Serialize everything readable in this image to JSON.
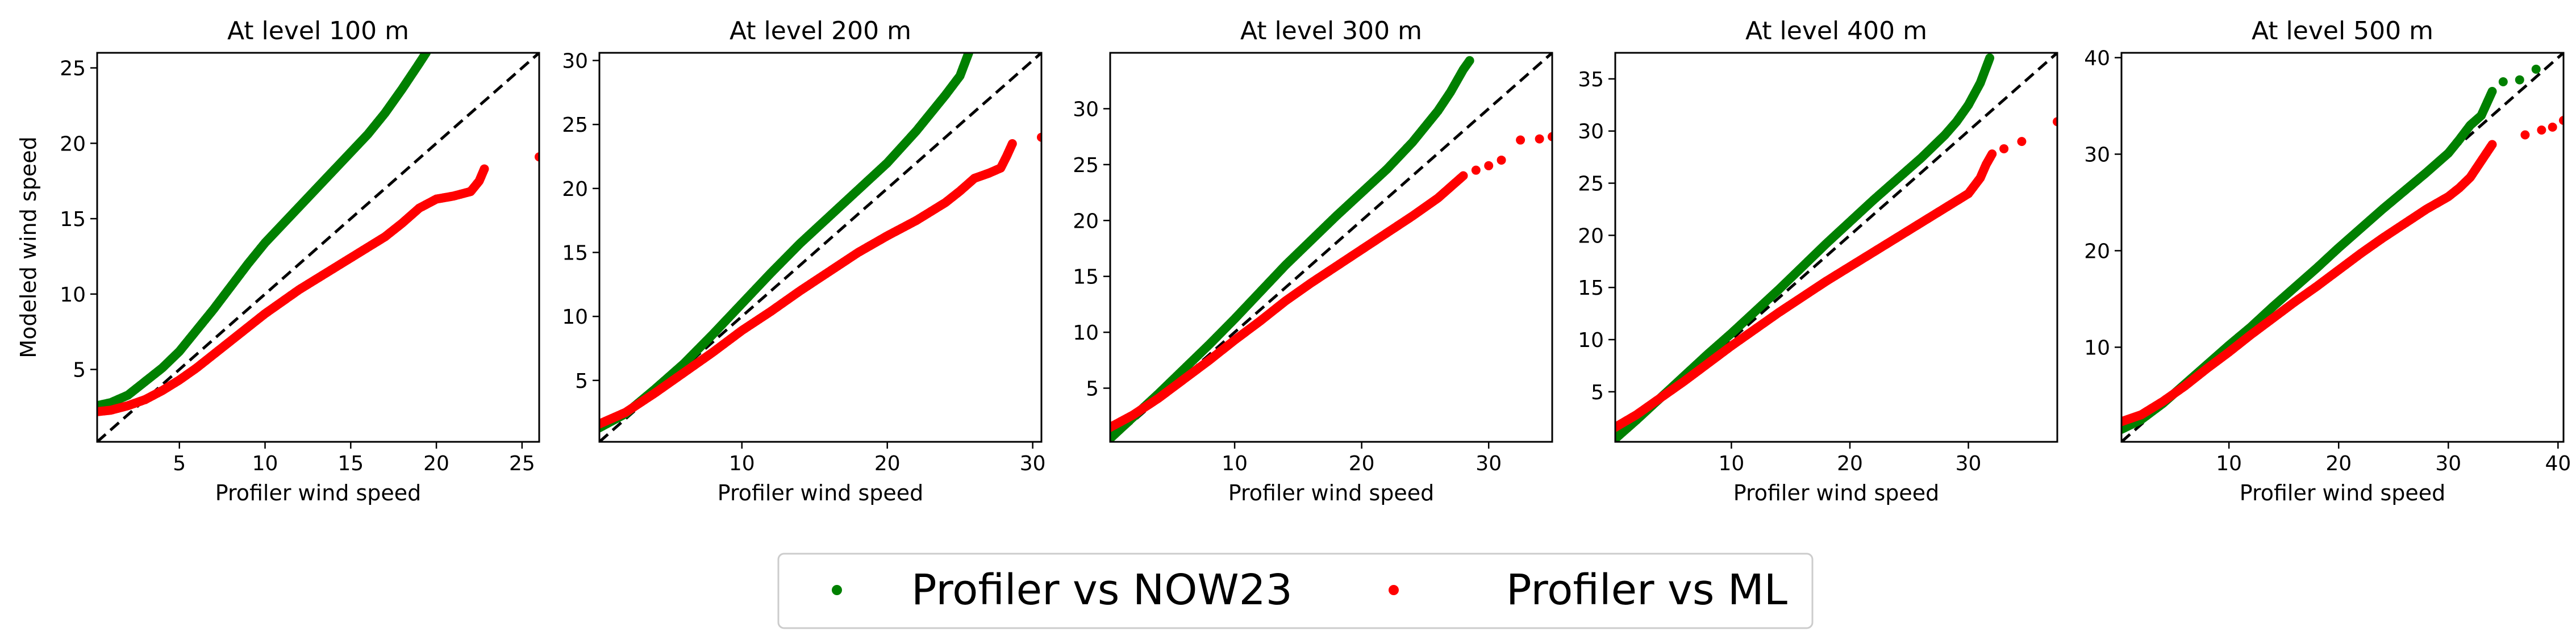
{
  "colors": {
    "now23": "#008000",
    "ml": "#ff0000",
    "identity": "#000000"
  },
  "legend": {
    "placement": "bottom-center",
    "entries": [
      {
        "label": "Profiler vs NOW23",
        "color": "#008000"
      },
      {
        "label": "Profiler vs ML",
        "color": "#ff0000"
      }
    ]
  },
  "chart_data": [
    {
      "type": "scatter",
      "title": "At level 100 m",
      "xlabel": "Profiler wind speed",
      "ylabel": "Modeled wind speed",
      "xlim": [
        0.2,
        26.0
      ],
      "ylim": [
        0.2,
        26.0
      ],
      "xticks": [
        5,
        10,
        15,
        20,
        25
      ],
      "yticks": [
        5,
        10,
        15,
        20,
        25
      ],
      "identity_line": true,
      "series": [
        {
          "name": "Profiler vs NOW23",
          "color": "#008000",
          "x": [
            0.2,
            1.0,
            2.0,
            3.0,
            4.0,
            5.0,
            6.0,
            7.0,
            8.0,
            9.0,
            10.0,
            11.0,
            12.0,
            13.0,
            14.0,
            15.0,
            16.0,
            17.0,
            18.0,
            19.0,
            19.4
          ],
          "y": [
            2.6,
            2.8,
            3.3,
            4.2,
            5.1,
            6.2,
            7.6,
            9.0,
            10.5,
            12.0,
            13.4,
            14.6,
            15.8,
            17.0,
            18.2,
            19.4,
            20.6,
            22.0,
            23.6,
            25.3,
            26.0
          ]
        },
        {
          "name": "Profiler vs ML",
          "color": "#ff0000",
          "x": [
            0.2,
            1.0,
            2.0,
            3.0,
            4.0,
            5.0,
            6.0,
            7.0,
            8.0,
            9.0,
            10.0,
            11.0,
            12.0,
            13.0,
            14.0,
            15.0,
            16.0,
            17.0,
            18.0,
            19.0,
            20.0,
            21.0,
            22.0,
            22.5,
            22.8
          ],
          "y": [
            2.2,
            2.3,
            2.6,
            3.0,
            3.6,
            4.3,
            5.1,
            6.0,
            6.9,
            7.8,
            8.7,
            9.5,
            10.3,
            11.0,
            11.7,
            12.4,
            13.1,
            13.8,
            14.7,
            15.7,
            16.3,
            16.5,
            16.8,
            17.5,
            18.3
          ]
        },
        {
          "name": "Profiler vs ML",
          "color": "#ff0000",
          "x": [
            26.0
          ],
          "y": [
            19.1
          ]
        }
      ]
    },
    {
      "type": "scatter",
      "title": "At level 200 m",
      "xlabel": "Profiler wind speed",
      "ylabel": "",
      "xlim": [
        0.2,
        30.6
      ],
      "ylim": [
        0.2,
        30.6
      ],
      "xticks": [
        10,
        20,
        30
      ],
      "yticks": [
        5,
        10,
        15,
        20,
        25,
        30
      ],
      "identity_line": true,
      "series": [
        {
          "name": "Profiler vs NOW23",
          "color": "#008000",
          "x": [
            0.2,
            2.0,
            4.0,
            6.0,
            8.0,
            10.0,
            12.0,
            14.0,
            16.0,
            18.0,
            20.0,
            22.0,
            24.0,
            25.0,
            25.6
          ],
          "y": [
            1.3,
            2.4,
            4.3,
            6.3,
            8.6,
            11.0,
            13.4,
            15.7,
            17.8,
            19.9,
            22.0,
            24.5,
            27.3,
            28.8,
            30.6
          ]
        },
        {
          "name": "Profiler vs ML",
          "color": "#ff0000",
          "x": [
            0.2,
            2.0,
            4.0,
            6.0,
            8.0,
            10.0,
            12.0,
            14.0,
            16.0,
            18.0,
            20.0,
            22.0,
            24.0,
            25.0,
            26.0,
            27.0,
            27.8,
            28.2,
            28.6
          ],
          "y": [
            1.6,
            2.5,
            4.0,
            5.6,
            7.2,
            8.9,
            10.4,
            12.0,
            13.5,
            15.0,
            16.3,
            17.5,
            18.9,
            19.8,
            20.8,
            21.2,
            21.6,
            22.5,
            23.5
          ]
        },
        {
          "name": "Profiler vs ML",
          "color": "#ff0000",
          "x": [
            30.6
          ],
          "y": [
            24.0
          ]
        }
      ]
    },
    {
      "type": "scatter",
      "title": "At level 300 m",
      "xlabel": "Profiler wind speed",
      "ylabel": "",
      "xlim": [
        0.2,
        35.0
      ],
      "ylim": [
        0.2,
        35.0
      ],
      "xticks": [
        10,
        20,
        30
      ],
      "yticks": [
        5,
        10,
        15,
        20,
        25,
        30
      ],
      "identity_line": true,
      "series": [
        {
          "name": "Profiler vs NOW23",
          "color": "#008000",
          "x": [
            0.2,
            2.0,
            4.0,
            6.0,
            8.0,
            10.0,
            12.0,
            14.0,
            16.0,
            18.0,
            20.0,
            22.0,
            24.0,
            26.0,
            27.0,
            28.0,
            28.5
          ],
          "y": [
            0.5,
            2.4,
            4.5,
            6.7,
            8.9,
            11.2,
            13.6,
            16.0,
            18.2,
            20.4,
            22.5,
            24.6,
            27.0,
            29.8,
            31.5,
            33.5,
            34.3
          ]
        },
        {
          "name": "Profiler vs ML",
          "color": "#ff0000",
          "x": [
            0.2,
            2.0,
            4.0,
            6.0,
            8.0,
            10.0,
            12.0,
            14.0,
            16.0,
            18.0,
            20.0,
            22.0,
            24.0,
            26.0,
            27.0,
            28.0
          ],
          "y": [
            1.5,
            2.6,
            4.1,
            5.8,
            7.5,
            9.3,
            11.0,
            12.8,
            14.4,
            15.9,
            17.4,
            18.9,
            20.4,
            22.0,
            23.0,
            24.0
          ]
        },
        {
          "name": "Profiler vs ML",
          "color": "#ff0000",
          "x": [
            29.0,
            30.0,
            31.0,
            32.5,
            34.0,
            35.0
          ],
          "y": [
            24.5,
            24.9,
            25.4,
            27.2,
            27.3,
            27.5
          ]
        }
      ]
    },
    {
      "type": "scatter",
      "title": "At level 400 m",
      "xlabel": "Profiler wind speed",
      "ylabel": "",
      "xlim": [
        0.2,
        37.5
      ],
      "ylim": [
        0.2,
        37.5
      ],
      "xticks": [
        10,
        20,
        30
      ],
      "yticks": [
        5,
        10,
        15,
        20,
        25,
        30,
        35
      ],
      "identity_line": true,
      "series": [
        {
          "name": "Profiler vs NOW23",
          "color": "#008000",
          "x": [
            0.2,
            2.0,
            4.0,
            6.0,
            8.0,
            10.0,
            12.0,
            14.0,
            16.0,
            18.0,
            20.0,
            22.0,
            24.0,
            26.0,
            28.0,
            29.0,
            30.0,
            31.0,
            31.8
          ],
          "y": [
            0.5,
            2.3,
            4.4,
            6.5,
            8.6,
            10.6,
            12.7,
            14.8,
            17.0,
            19.2,
            21.3,
            23.4,
            25.4,
            27.4,
            29.6,
            30.9,
            32.5,
            34.6,
            37.0
          ]
        },
        {
          "name": "Profiler vs ML",
          "color": "#ff0000",
          "x": [
            0.2,
            2.0,
            4.0,
            6.0,
            8.0,
            10.0,
            12.0,
            14.0,
            16.0,
            18.0,
            20.0,
            22.0,
            24.0,
            26.0,
            28.0,
            29.0,
            30.0,
            31.0,
            31.5,
            32.0
          ],
          "y": [
            1.6,
            2.8,
            4.4,
            6.0,
            7.7,
            9.4,
            11.0,
            12.6,
            14.1,
            15.6,
            17.0,
            18.4,
            19.8,
            21.2,
            22.6,
            23.3,
            24.0,
            25.5,
            26.8,
            27.8
          ]
        },
        {
          "name": "Profiler vs ML",
          "color": "#ff0000",
          "x": [
            33.0,
            34.5,
            37.5
          ],
          "y": [
            28.3,
            29.0,
            30.9
          ]
        }
      ]
    },
    {
      "type": "scatter",
      "title": "At level 500 m",
      "xlabel": "Profiler wind speed",
      "ylabel": "",
      "xlim": [
        0.2,
        40.5
      ],
      "ylim": [
        0.2,
        40.5
      ],
      "xticks": [
        10,
        20,
        30,
        40
      ],
      "yticks": [
        10,
        20,
        30,
        40
      ],
      "identity_line": true,
      "series": [
        {
          "name": "Profiler vs NOW23",
          "color": "#008000",
          "x": [
            0.2,
            2.0,
            4.0,
            6.0,
            8.0,
            10.0,
            12.0,
            14.0,
            16.0,
            18.0,
            20.0,
            22.0,
            24.0,
            26.0,
            28.0,
            30.0,
            31.0,
            32.0,
            33.0,
            34.0
          ],
          "y": [
            1.5,
            2.5,
            4.2,
            6.2,
            8.2,
            10.2,
            12.1,
            14.2,
            16.2,
            18.2,
            20.3,
            22.3,
            24.3,
            26.2,
            28.1,
            30.1,
            31.5,
            33.0,
            34.0,
            36.5
          ]
        },
        {
          "name": "Profiler vs NOW23",
          "color": "#008000",
          "x": [
            35.0,
            36.5,
            38.0
          ],
          "y": [
            37.5,
            37.7,
            38.8
          ]
        },
        {
          "name": "Profiler vs ML",
          "color": "#ff0000",
          "x": [
            0.2,
            2.0,
            4.0,
            6.0,
            8.0,
            10.0,
            12.0,
            14.0,
            16.0,
            18.0,
            20.0,
            22.0,
            24.0,
            26.0,
            28.0,
            30.0,
            31.0,
            32.0,
            33.0,
            34.0
          ],
          "y": [
            2.3,
            3.0,
            4.4,
            6.0,
            7.8,
            9.5,
            11.3,
            13.0,
            14.7,
            16.3,
            18.0,
            19.7,
            21.3,
            22.8,
            24.3,
            25.6,
            26.5,
            27.6,
            29.3,
            31.0
          ]
        },
        {
          "name": "Profiler vs ML",
          "color": "#ff0000",
          "x": [
            37.0,
            38.5,
            39.5,
            40.5
          ],
          "y": [
            32.0,
            32.5,
            32.8,
            33.5
          ]
        }
      ]
    }
  ]
}
